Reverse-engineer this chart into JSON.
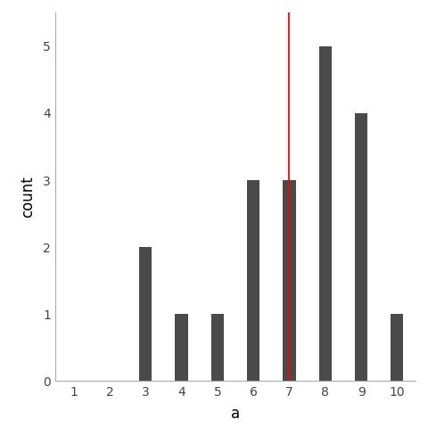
{
  "categories": [
    1,
    2,
    3,
    4,
    5,
    6,
    7,
    8,
    9,
    10
  ],
  "counts": [
    0,
    0,
    2,
    1,
    1,
    3,
    3,
    5,
    4,
    1
  ],
  "mean": 7.0,
  "bar_color": "#4a4a4a",
  "mean_line_color": "#FF0000",
  "background_color": "#FFFFFF",
  "xlabel": "a",
  "ylabel": "count",
  "ylim": [
    0,
    5.5
  ],
  "xlim": [
    0.5,
    10.5
  ],
  "xticks": [
    1,
    2,
    3,
    4,
    5,
    6,
    7,
    8,
    9,
    10
  ],
  "yticks": [
    0,
    1,
    2,
    3,
    4,
    5
  ],
  "bar_width": 0.35,
  "xlabel_fontsize": 12,
  "ylabel_fontsize": 12,
  "tick_fontsize": 10,
  "mean_linewidth": 1.3
}
